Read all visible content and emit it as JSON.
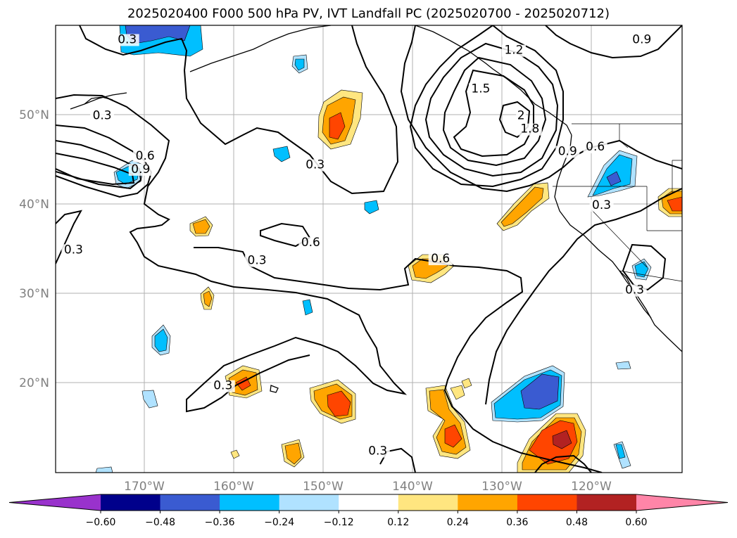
{
  "chart_data": {
    "type": "contour_map",
    "title": "2025020400 F000 500 hPa PV, IVT Landfall PC (2025020700 - 2025020712)",
    "lon_ticks": [
      "170°W",
      "160°W",
      "150°W",
      "140°W",
      "130°W",
      "120°W"
    ],
    "lat_ticks": [
      "50°N",
      "40°N",
      "30°N",
      "20°N"
    ],
    "grid": true,
    "colorbar": {
      "orientation": "horizontal",
      "extend": "both",
      "levels": [
        -0.6,
        -0.48,
        -0.36,
        -0.24,
        -0.12,
        0.12,
        0.24,
        0.36,
        0.48,
        0.6
      ],
      "tick_labels": [
        "−0.60",
        "−0.48",
        "−0.36",
        "−0.24",
        "−0.12",
        "0.12",
        "0.24",
        "0.36",
        "0.48",
        "0.60"
      ],
      "colors": [
        "#9932cc",
        "#00008b",
        "#3a5bd1",
        "#00bfff",
        "#b0e2ff",
        "#ffffff",
        "#ffe680",
        "#ffa500",
        "#ff4500",
        "#b22222",
        "#ff85a8"
      ]
    },
    "contour_labels": [
      {
        "text": "0.3",
        "lon": -172.0,
        "lat": 58.0
      },
      {
        "text": "0.3",
        "lon": -174.8,
        "lat": 49.5
      },
      {
        "text": "0.6",
        "lon": -170.0,
        "lat": 45.0
      },
      {
        "text": "0.9",
        "lon": -170.5,
        "lat": 43.5
      },
      {
        "text": "0.3",
        "lon": -178.0,
        "lat": 34.5
      },
      {
        "text": "0.3",
        "lon": -151.0,
        "lat": 44.0
      },
      {
        "text": "0.6",
        "lon": -151.5,
        "lat": 35.3
      },
      {
        "text": "0.3",
        "lon": -157.5,
        "lat": 33.3
      },
      {
        "text": "0.6",
        "lon": -137.0,
        "lat": 33.5
      },
      {
        "text": "0.3",
        "lon": -161.3,
        "lat": 19.3
      },
      {
        "text": "0.3",
        "lon": -144.0,
        "lat": 12.0
      },
      {
        "text": "1.2",
        "lon": -128.8,
        "lat": 56.8
      },
      {
        "text": "1.5",
        "lon": -132.5,
        "lat": 52.5
      },
      {
        "text": "2",
        "lon": -128.0,
        "lat": 49.5
      },
      {
        "text": "1.8",
        "lon": -127.0,
        "lat": 48.0
      },
      {
        "text": "0.9",
        "lon": -122.8,
        "lat": 45.5
      },
      {
        "text": "0.6",
        "lon": -119.7,
        "lat": 46.0
      },
      {
        "text": "0.3",
        "lon": -119.0,
        "lat": 39.5
      },
      {
        "text": "0.9",
        "lon": -114.5,
        "lat": 58.0
      },
      {
        "text": "0.3",
        "lon": -115.3,
        "lat": 30.0
      }
    ]
  }
}
